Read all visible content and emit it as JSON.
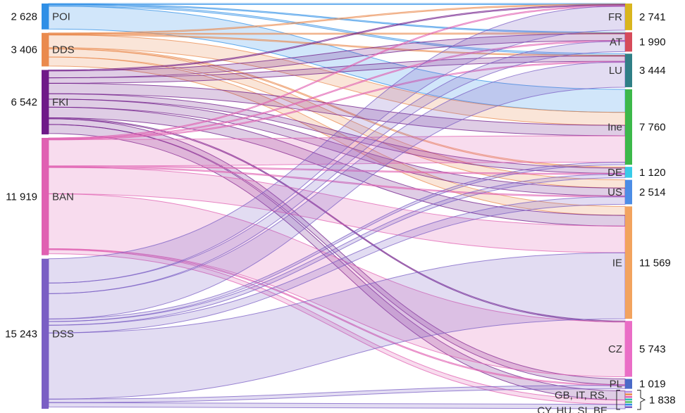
{
  "chart_data": {
    "type": "sankey",
    "unit_total_note": "",
    "sources": [
      {
        "id": "POI",
        "label": "POI",
        "value": "2 628",
        "v": 2628,
        "color": "#2f8fe6"
      },
      {
        "id": "DDS",
        "label": "DDS",
        "value": "3 406",
        "v": 3406,
        "color": "#ea8a4d"
      },
      {
        "id": "FKI",
        "label": "FKI",
        "value": "6 542",
        "v": 6542,
        "color": "#6f1a88"
      },
      {
        "id": "BAN",
        "label": "BAN",
        "value": "11 919",
        "v": 11919,
        "color": "#e060b2"
      },
      {
        "id": "DSS",
        "label": "DSS",
        "value": "15 243",
        "v": 15243,
        "color": "#7a5ec4"
      }
    ],
    "targets": [
      {
        "id": "FR",
        "label": "FR",
        "value": "2 741",
        "v": 2741,
        "color": "#d9b51e"
      },
      {
        "id": "AT",
        "label": "AT",
        "value": "1 990",
        "v": 1990,
        "color": "#d64b5a"
      },
      {
        "id": "LU",
        "label": "LU",
        "value": "3 444",
        "v": 3444,
        "color": "#2f7f86"
      },
      {
        "id": "Ine",
        "label": "Ine",
        "value": "7 760",
        "v": 7760,
        "color": "#3cb84a"
      },
      {
        "id": "DE",
        "label": "DE",
        "value": "1 120",
        "v": 1120,
        "color": "#38cbe8"
      },
      {
        "id": "US",
        "label": "US",
        "value": "2 514",
        "v": 2514,
        "color": "#4c8de6"
      },
      {
        "id": "IE",
        "label": "IE",
        "value": "11 569",
        "v": 11569,
        "color": "#f2a35e"
      },
      {
        "id": "CZ",
        "label": "CZ",
        "value": "5 743",
        "v": 5743,
        "color": "#ea6dc6"
      },
      {
        "id": "PL",
        "label": "PL",
        "value": "1 019",
        "v": 1019,
        "color": "#4a6ac8"
      },
      {
        "id": "OTHER",
        "label": "",
        "value": "",
        "v": 1838,
        "color": "#888888"
      }
    ],
    "small_group": {
      "line1": "GB, IT, RS,",
      "line2": "CY, HU, SI, BE",
      "value": "1 838",
      "colors": [
        "#b38ee0",
        "#ea8a4d",
        "#e060b2",
        "#2bbfb0",
        "#59c36a",
        "#2f8fe6",
        "#7a5ec4"
      ]
    },
    "flows": [
      {
        "s": "POI",
        "t": "FR",
        "v": 45
      },
      {
        "s": "POI",
        "t": "AT",
        "v": 60
      },
      {
        "s": "POI",
        "t": "LU",
        "v": 155
      },
      {
        "s": "POI",
        "t": "Ine",
        "v": 2368
      },
      {
        "s": "DDS",
        "t": "FR",
        "v": 60
      },
      {
        "s": "DDS",
        "t": "AT",
        "v": 60
      },
      {
        "s": "DDS",
        "t": "LU",
        "v": 60
      },
      {
        "s": "DDS",
        "t": "Ine",
        "v": 1340
      },
      {
        "s": "DDS",
        "t": "DE",
        "v": 120
      },
      {
        "s": "DDS",
        "t": "US",
        "v": 840
      },
      {
        "s": "DDS",
        "t": "IE",
        "v": 926
      },
      {
        "s": "FKI",
        "t": "FR",
        "v": 90
      },
      {
        "s": "FKI",
        "t": "AT",
        "v": 720
      },
      {
        "s": "FKI",
        "t": "LU",
        "v": 560
      },
      {
        "s": "FKI",
        "t": "Ine",
        "v": 1070
      },
      {
        "s": "FKI",
        "t": "DE",
        "v": 560
      },
      {
        "s": "FKI",
        "t": "US",
        "v": 820
      },
      {
        "s": "FKI",
        "t": "IE",
        "v": 1100
      },
      {
        "s": "FKI",
        "t": "CZ",
        "v": 90
      },
      {
        "s": "FKI",
        "t": "PL",
        "v": 600
      },
      {
        "s": "FKI",
        "t": "OTHER",
        "v": 932
      },
      {
        "s": "BAN",
        "t": "FR",
        "v": 46
      },
      {
        "s": "BAN",
        "t": "AT",
        "v": 60
      },
      {
        "s": "BAN",
        "t": "LU",
        "v": 60
      },
      {
        "s": "BAN",
        "t": "Ine",
        "v": 2720
      },
      {
        "s": "BAN",
        "t": "DE",
        "v": 60
      },
      {
        "s": "BAN",
        "t": "US",
        "v": 60
      },
      {
        "s": "BAN",
        "t": "IE",
        "v": 2740
      },
      {
        "s": "BAN",
        "t": "CZ",
        "v": 5653
      },
      {
        "s": "BAN",
        "t": "PL",
        "v": 60
      },
      {
        "s": "BAN",
        "t": "OTHER",
        "v": 460
      },
      {
        "s": "DSS",
        "t": "FR",
        "v": 2500
      },
      {
        "s": "DSS",
        "t": "AT",
        "v": 1090
      },
      {
        "s": "DSS",
        "t": "LU",
        "v": 2609
      },
      {
        "s": "DSS",
        "t": "Ine",
        "v": 262
      },
      {
        "s": "DSS",
        "t": "DE",
        "v": 380
      },
      {
        "s": "DSS",
        "t": "US",
        "v": 794
      },
      {
        "s": "DSS",
        "t": "IE",
        "v": 6803
      },
      {
        "s": "DSS",
        "t": "PL",
        "v": 359
      },
      {
        "s": "DSS",
        "t": "OTHER",
        "v": 446
      }
    ]
  }
}
